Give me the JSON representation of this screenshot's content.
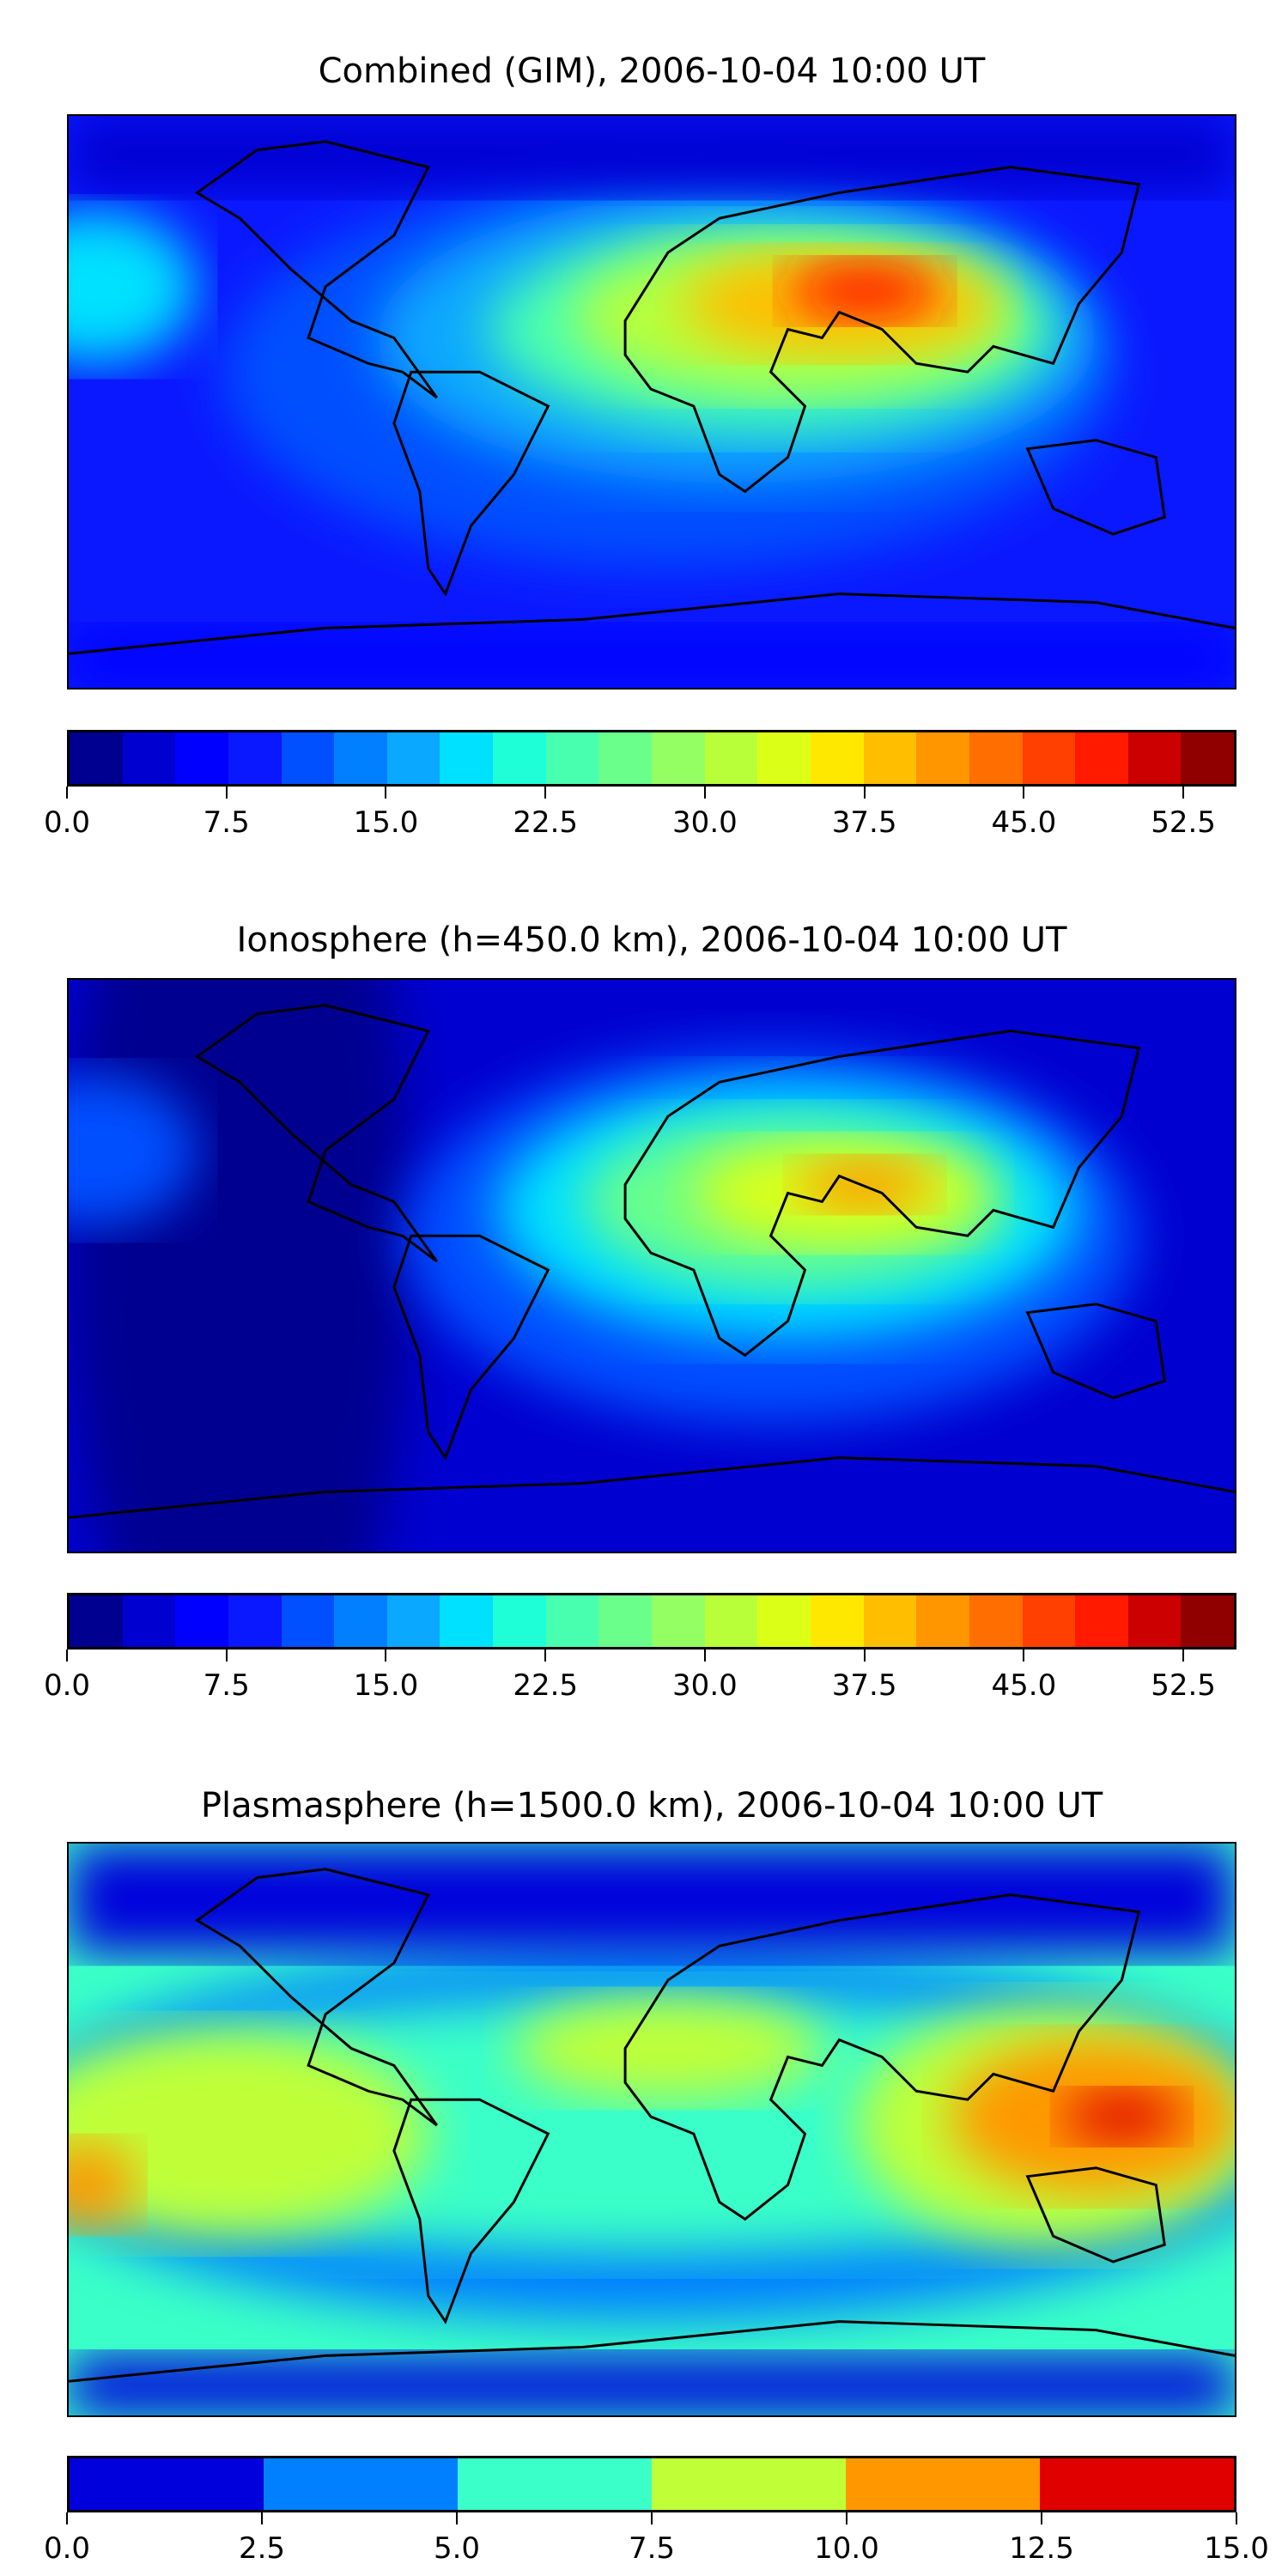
{
  "chart_data": [
    {
      "type": "heatmap",
      "title": "Combined (GIM), 2006-10-04 10:00 UT",
      "colorbar": {
        "range": [
          0,
          55
        ],
        "step": 2.5,
        "tick_labels": [
          "0.0",
          "7.5",
          "15.0",
          "22.5",
          "30.0",
          "37.5",
          "45.0",
          "52.5"
        ],
        "tick_values": [
          0,
          7.5,
          15,
          22.5,
          30,
          37.5,
          45,
          52.5
        ],
        "colors": [
          "#000090",
          "#0000d0",
          "#0000ff",
          "#0a18ff",
          "#0050ff",
          "#0080ff",
          "#0aa8ff",
          "#00e0ff",
          "#1effd8",
          "#48ffb0",
          "#6aff8a",
          "#94ff62",
          "#b8ff3a",
          "#dcff18",
          "#ffe800",
          "#ffbe00",
          "#ff9600",
          "#ff6e00",
          "#ff4000",
          "#ff1a00",
          "#cc0000",
          "#900000"
        ]
      },
      "features": {
        "peak_region": "South Asia / Arabian Sea",
        "peak_value_approx": 50,
        "background_value_approx": 7.5
      }
    },
    {
      "type": "heatmap",
      "title": "Ionosphere  (h=450.0 km), 2006-10-04 10:00 UT",
      "colorbar": {
        "range": [
          0,
          55
        ],
        "step": 2.5,
        "tick_labels": [
          "0.0",
          "7.5",
          "15.0",
          "22.5",
          "30.0",
          "37.5",
          "45.0",
          "52.5"
        ],
        "tick_values": [
          0,
          7.5,
          15,
          22.5,
          30,
          37.5,
          45,
          52.5
        ],
        "colors": [
          "#000090",
          "#0000d0",
          "#0000ff",
          "#0a18ff",
          "#0050ff",
          "#0080ff",
          "#0aa8ff",
          "#00e0ff",
          "#1effd8",
          "#48ffb0",
          "#6aff8a",
          "#94ff62",
          "#b8ff3a",
          "#dcff18",
          "#ffe800",
          "#ffbe00",
          "#ff9600",
          "#ff6e00",
          "#ff4000",
          "#ff1a00",
          "#cc0000",
          "#900000"
        ]
      },
      "features": {
        "peak_region": "Arabian Sea / India",
        "peak_value_approx": 42,
        "background_value_approx": 2.5
      }
    },
    {
      "type": "heatmap",
      "title": "Plasmasphere (h=1500.0 km), 2006-10-04 10:00 UT",
      "colorbar": {
        "range": [
          0,
          15
        ],
        "step": 2.5,
        "tick_labels": [
          "0.0",
          "2.5",
          "5.0",
          "7.5",
          "10.0",
          "12.5",
          "15.0"
        ],
        "tick_values": [
          0,
          2.5,
          5,
          7.5,
          10,
          12.5,
          15
        ],
        "colors": [
          "#0000dc",
          "#0080ff",
          "#3affc8",
          "#c0ff38",
          "#ff9800",
          "#e00000"
        ]
      },
      "features": {
        "peak_region": "Indonesia / New Guinea",
        "peak_value_approx": 13,
        "background_value_approx": 5
      }
    }
  ]
}
